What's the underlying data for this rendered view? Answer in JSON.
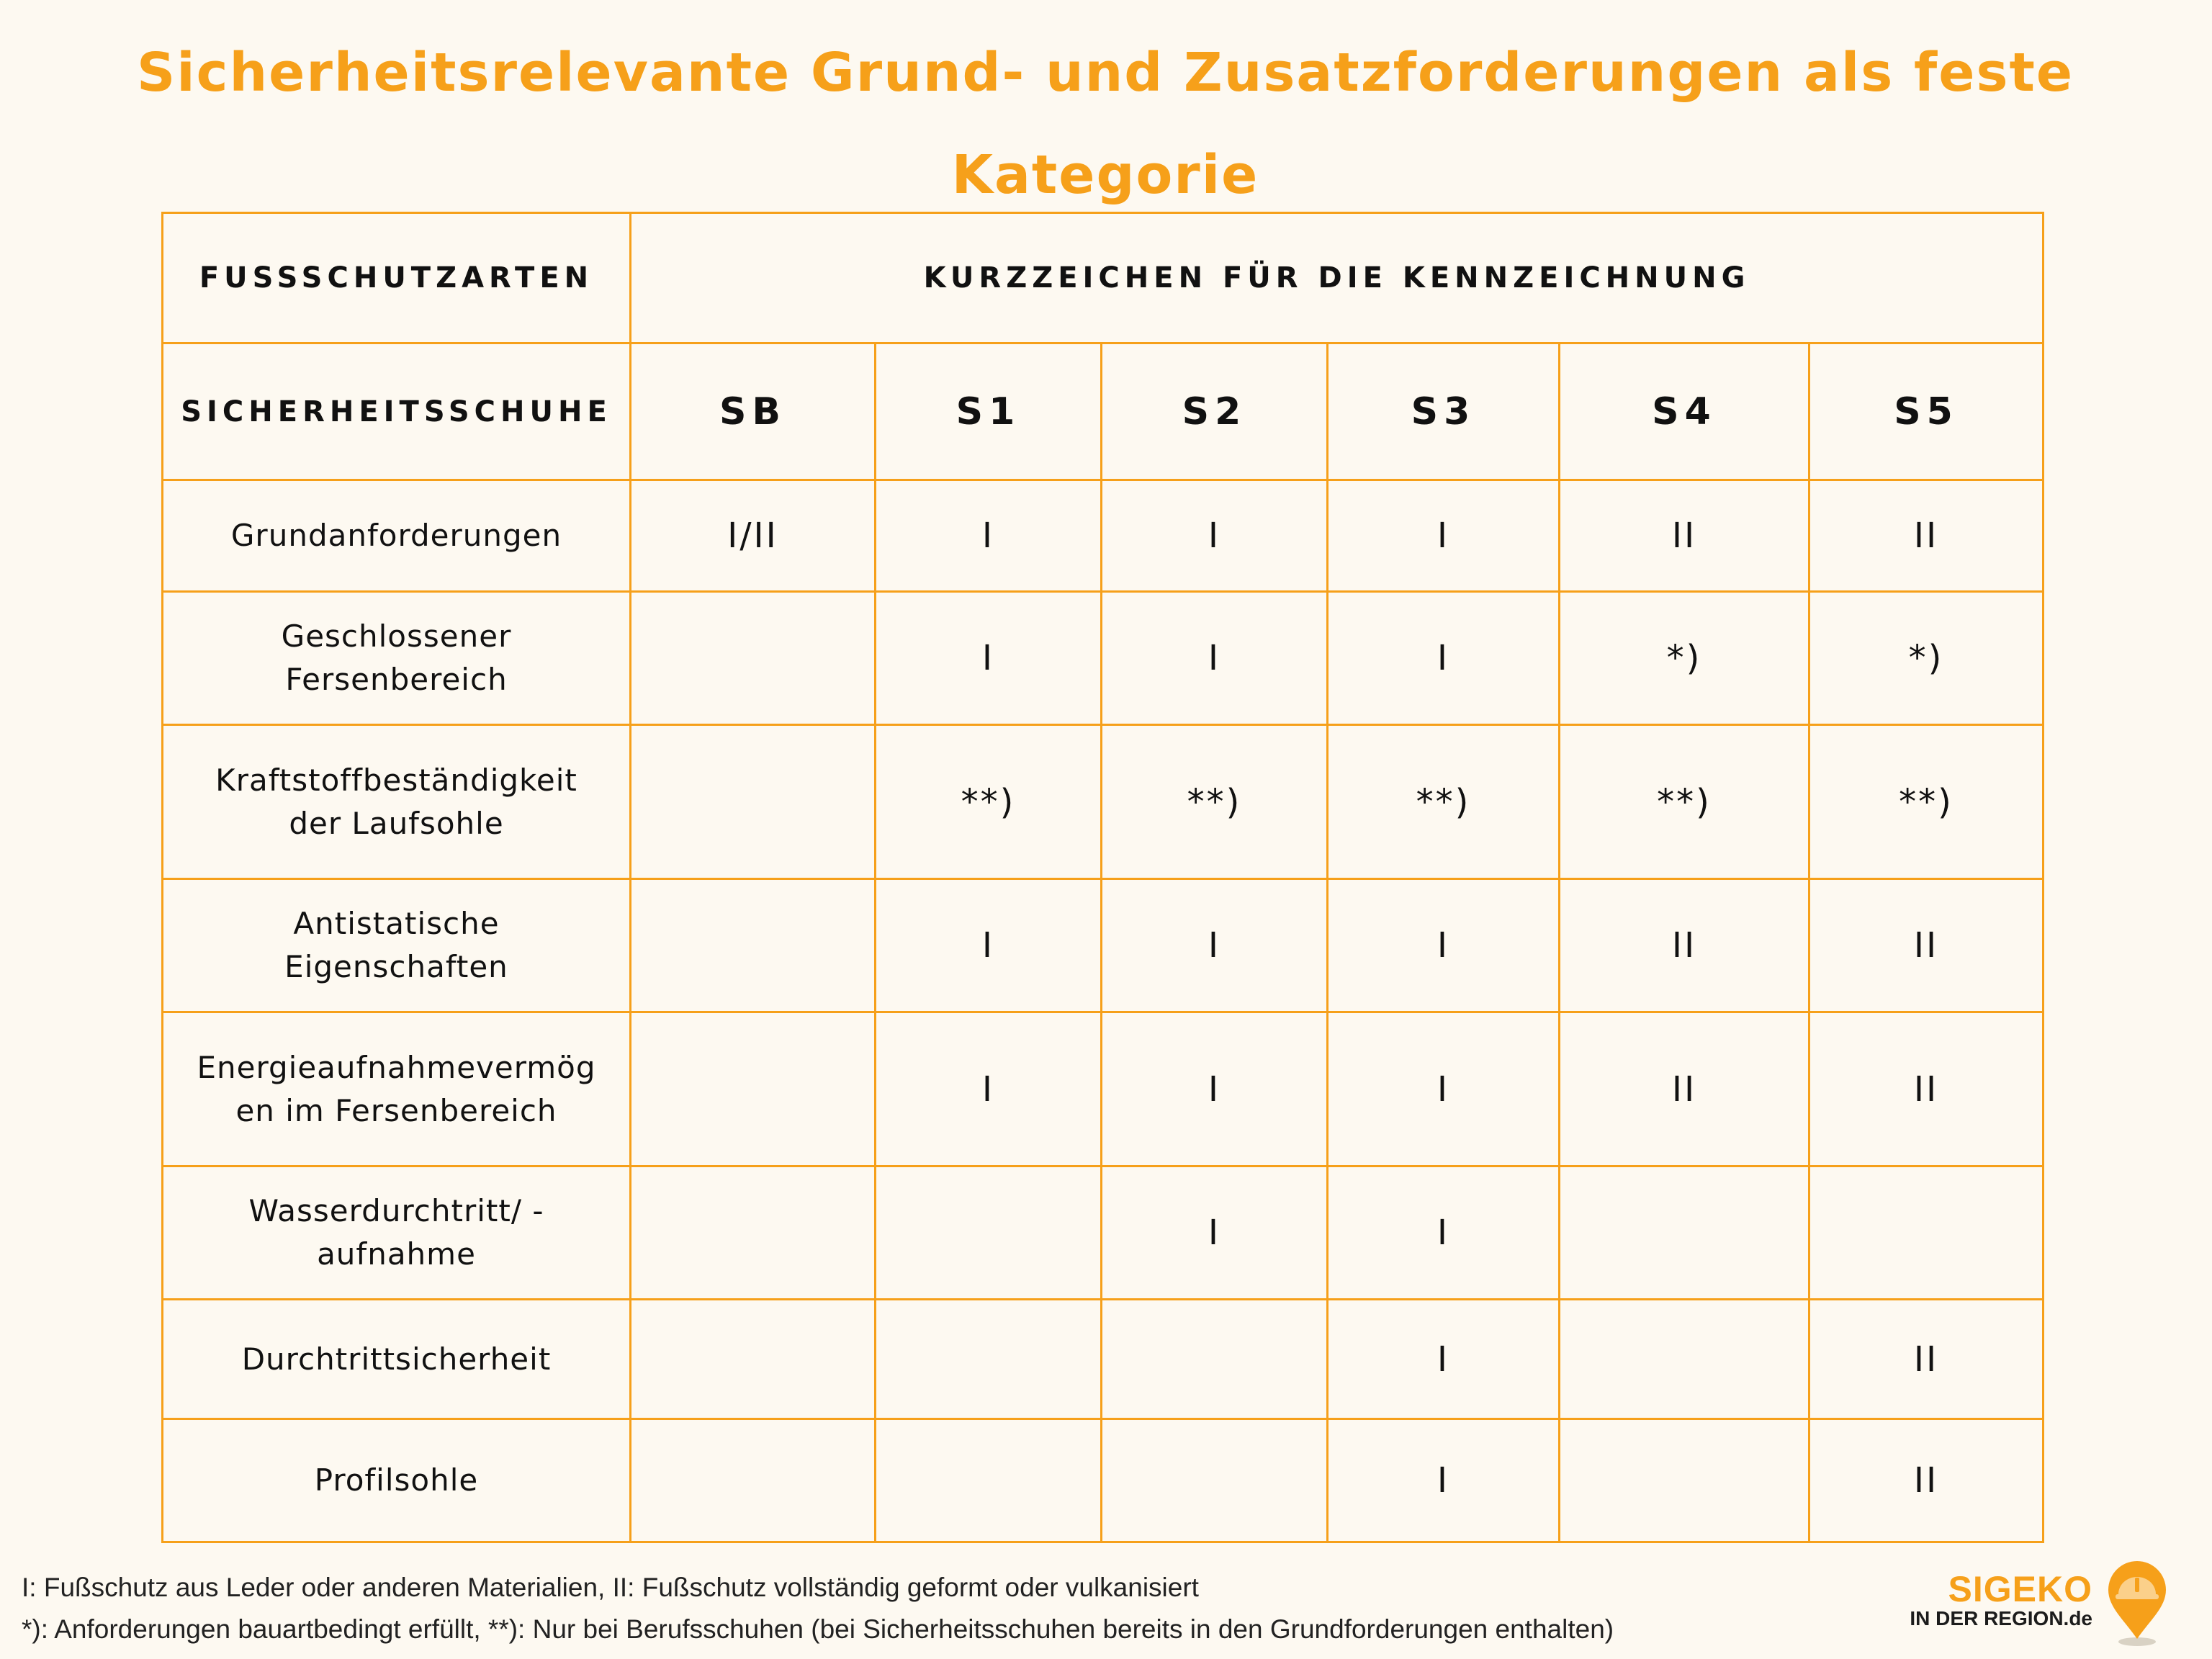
{
  "title": {
    "line1": "Sicherheitsrelevante Grund- und Zusatzforderungen als feste",
    "line2": "Kategorie"
  },
  "table": {
    "header_left": "FUSSSCHUTZARTEN",
    "header_right": "KURZZEICHEN FÜR DIE KENNZEICHNUNG",
    "subheader_left": "SICHERHEITSSCHUHE",
    "codes": [
      "SB",
      "S1",
      "S2",
      "S3",
      "S4",
      "S5"
    ],
    "rows": [
      {
        "label": "Grundanforderungen",
        "cells": [
          "I/II",
          "I",
          "I",
          "I",
          "II",
          "II"
        ]
      },
      {
        "label_line1": "Geschlossener",
        "label_line2": "Fersenbereich",
        "cells": [
          "",
          "I",
          "I",
          "I",
          "*)",
          "*)"
        ]
      },
      {
        "label_line1": "Kraftstoffbeständigkeit",
        "label_line2": "der Laufsohle",
        "cells": [
          "",
          "**)",
          "**)",
          "**)",
          "**)",
          "**)"
        ]
      },
      {
        "label_line1": "Antistatische",
        "label_line2": "Eigenschaften",
        "cells": [
          "",
          "I",
          "I",
          "I",
          "II",
          "II"
        ]
      },
      {
        "label_line1": "Energieaufnahmevermög",
        "label_line2": "en im Fersenbereich",
        "cells": [
          "",
          "I",
          "I",
          "I",
          "II",
          "II"
        ]
      },
      {
        "label_line1": "Wasserdurchtritt/ -",
        "label_line2": "aufnahme",
        "cells": [
          "",
          "",
          "I",
          "I",
          "",
          ""
        ]
      },
      {
        "label": "Durchtrittsicherheit",
        "cells": [
          "",
          "",
          "",
          "I",
          "",
          "II"
        ]
      },
      {
        "label": "Profilsohle",
        "cells": [
          "",
          "",
          "",
          "I",
          "",
          "II"
        ]
      }
    ]
  },
  "footnotes": {
    "line1": "I: Fußschutz aus Leder oder anderen Materialien, II: Fußschutz vollständig geformt oder vulkanisiert",
    "line2": "*): Anforderungen bauartbedingt erfüllt, **): Nur bei Berufsschuhen (bei Sicherheitsschuhen bereits in den Grundforderungen enthalten)"
  },
  "logo": {
    "name": "SIGEKO",
    "tagline": "IN DER REGION.de",
    "icon": "location-pin-hardhat-icon"
  },
  "colors": {
    "accent": "#f6a01a",
    "background": "#fdf9f1",
    "text": "#111111"
  }
}
